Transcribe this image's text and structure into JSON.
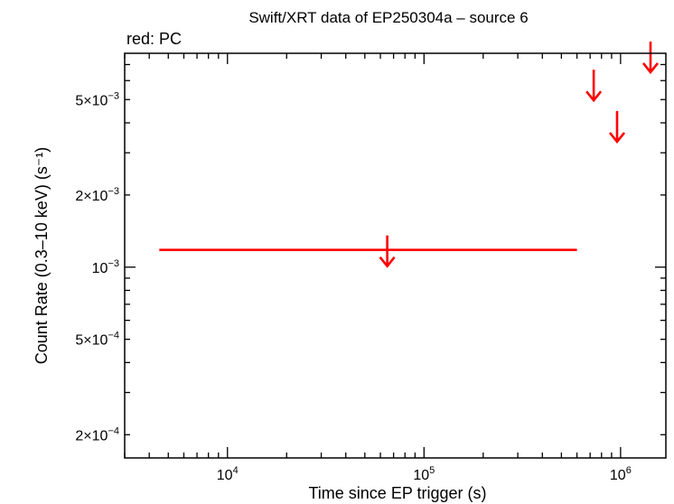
{
  "chart_data": {
    "type": "scatter",
    "title": "Swift/XRT data of EP250304a – source 6",
    "subtitle": "red: PC",
    "xlabel": "Time since EP trigger (s)",
    "ylabel": "Count Rate (0.3–10 keV) (s⁻¹)",
    "xscale": "log",
    "yscale": "log",
    "xlim": [
      3000,
      1700000
    ],
    "ylim": [
      0.00016,
      0.0078
    ],
    "grid": false,
    "x_ticks": [
      {
        "value": 10000,
        "mantissa": "10",
        "exp": "4"
      },
      {
        "value": 100000,
        "mantissa": "10",
        "exp": "5"
      },
      {
        "value": 1000000,
        "mantissa": "10",
        "exp": "6"
      }
    ],
    "y_ticks": [
      {
        "value": 0.0002,
        "mantissa": "2×10",
        "exp": "−4"
      },
      {
        "value": 0.0005,
        "mantissa": "5×10",
        "exp": "−4"
      },
      {
        "value": 0.001,
        "mantissa": "10",
        "exp": "−3"
      },
      {
        "value": 0.002,
        "mantissa": "2×10",
        "exp": "−3"
      },
      {
        "value": 0.005,
        "mantissa": "5×10",
        "exp": "−3"
      }
    ],
    "series": [
      {
        "color": "#ff0000",
        "points": [
          {
            "x": 65000,
            "x_low": 4500,
            "x_high": 600000,
            "y": 0.00118,
            "upper_limit": true
          },
          {
            "x": 730000,
            "y": 0.0058,
            "upper_limit": true
          },
          {
            "x": 960000,
            "y": 0.0039,
            "upper_limit": true
          },
          {
            "x": 1420000,
            "y": 0.0076,
            "upper_limit": true
          }
        ]
      }
    ]
  }
}
